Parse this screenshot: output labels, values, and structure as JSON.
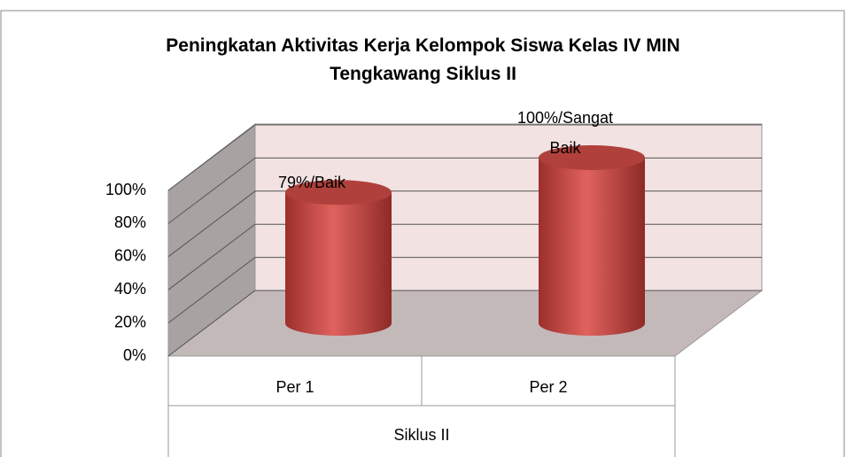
{
  "chart_data": {
    "type": "bar3d",
    "title": "Peningkatan Aktivitas Kerja Kelompok Siswa Kelas IV MIN Tengkawang Siklus II",
    "categories": [
      "Per 1",
      "Per 2"
    ],
    "x_group_label": "Siklus II",
    "values": [
      79,
      100
    ],
    "value_labels": [
      "79%/Baik",
      "100%/Sangat Baik"
    ],
    "color": "#c0504d",
    "ylim": [
      0,
      100
    ],
    "yticks": [
      {
        "value": 0,
        "label": "0%"
      },
      {
        "value": 20,
        "label": "20%"
      },
      {
        "value": 40,
        "label": "40%"
      },
      {
        "value": 60,
        "label": "60%"
      },
      {
        "value": 80,
        "label": "80%"
      },
      {
        "value": 100,
        "label": "100%"
      }
    ],
    "grid": true
  }
}
